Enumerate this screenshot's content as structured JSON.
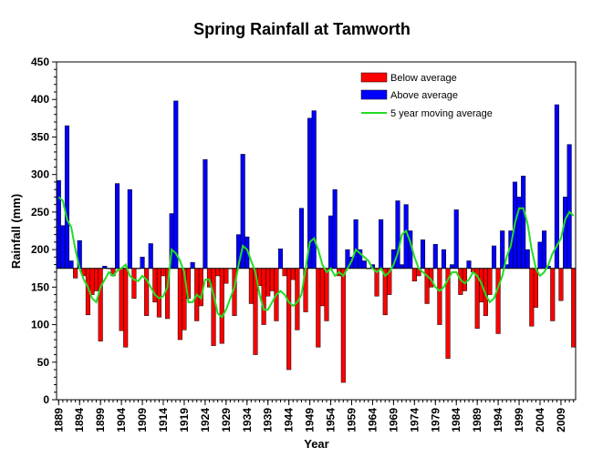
{
  "chart_data": {
    "type": "bar",
    "title": "Spring Rainfall at Tamworth",
    "xlabel": "Year",
    "ylabel": "Rainfall (mm)",
    "ylim": [
      0,
      450
    ],
    "yticks": [
      0,
      50,
      100,
      150,
      200,
      250,
      300,
      350,
      400,
      450
    ],
    "xtick_labels": [
      "1889",
      "1894",
      "1899",
      "1904",
      "1909",
      "1914",
      "1919",
      "1924",
      "1929",
      "1934",
      "1939",
      "1944",
      "1949",
      "1954",
      "1959",
      "1964",
      "1969",
      "1974",
      "1979",
      "1984",
      "1989",
      "1994",
      "1999",
      "2004",
      "2009"
    ],
    "baseline": 175,
    "legend_position": "top-right",
    "grid": false,
    "colors": {
      "below": "#ff0000",
      "above": "#0000ff",
      "moving_average": "#22dd22"
    },
    "series": [
      {
        "name": "Below average",
        "kind": "bar-below"
      },
      {
        "name": "Above average",
        "kind": "bar-above"
      },
      {
        "name": "5 year moving average",
        "kind": "line"
      }
    ],
    "x": [
      1889,
      1890,
      1891,
      1892,
      1893,
      1894,
      1895,
      1896,
      1897,
      1898,
      1899,
      1900,
      1901,
      1902,
      1903,
      1904,
      1905,
      1906,
      1907,
      1908,
      1909,
      1910,
      1911,
      1912,
      1913,
      1914,
      1915,
      1916,
      1917,
      1918,
      1919,
      1920,
      1921,
      1922,
      1923,
      1924,
      1925,
      1926,
      1927,
      1928,
      1929,
      1930,
      1931,
      1932,
      1933,
      1934,
      1935,
      1936,
      1937,
      1938,
      1939,
      1940,
      1941,
      1942,
      1943,
      1944,
      1945,
      1946,
      1947,
      1948,
      1949,
      1950,
      1951,
      1952,
      1953,
      1954,
      1955,
      1956,
      1957,
      1958,
      1959,
      1960,
      1961,
      1962,
      1963,
      1964,
      1965,
      1966,
      1967,
      1968,
      1969,
      1970,
      1971,
      1972,
      1973,
      1974,
      1975,
      1976,
      1977,
      1978,
      1979,
      1980,
      1981,
      1982,
      1983,
      1984,
      1985,
      1986,
      1987,
      1988,
      1989,
      1990,
      1991,
      1992,
      1993,
      1994,
      1995,
      1996,
      1997,
      1998,
      1999,
      2000,
      2001,
      2002,
      2003,
      2004,
      2005,
      2006,
      2007,
      2008,
      2009,
      2010,
      2011,
      2012
    ],
    "rainfall": [
      292,
      232,
      365,
      185,
      162,
      212,
      165,
      113,
      140,
      145,
      78,
      178,
      175,
      165,
      288,
      92,
      70,
      280,
      135,
      175,
      190,
      112,
      208,
      130,
      110,
      165,
      108,
      248,
      398,
      80,
      93,
      135,
      183,
      105,
      125,
      320,
      150,
      72,
      165,
      75,
      155,
      175,
      112,
      220,
      327,
      217,
      128,
      60,
      152,
      100,
      138,
      145,
      105,
      201,
      165,
      40,
      160,
      93,
      255,
      117,
      375,
      385,
      70,
      125,
      105,
      245,
      280,
      165,
      23,
      200,
      190,
      240,
      200,
      185,
      175,
      180,
      138,
      240,
      113,
      140,
      200,
      265,
      180,
      260,
      225,
      158,
      165,
      213,
      128,
      150,
      207,
      100,
      200,
      55,
      180,
      253,
      140,
      145,
      185,
      170,
      95,
      130,
      112,
      140,
      205,
      88,
      225,
      180,
      225,
      290,
      270,
      298,
      200,
      98,
      123,
      210,
      225,
      178,
      105,
      393,
      132,
      270,
      340,
      70
    ],
    "moving_average": [
      270,
      265,
      240,
      230,
      200,
      175,
      160,
      150,
      135,
      130,
      150,
      160,
      170,
      165,
      172,
      175,
      180,
      165,
      160,
      158,
      165,
      160,
      150,
      140,
      135,
      138,
      150,
      200,
      195,
      185,
      170,
      130,
      130,
      140,
      135,
      160,
      160,
      140,
      115,
      110,
      120,
      135,
      150,
      180,
      205,
      200,
      185,
      170,
      140,
      120,
      120,
      130,
      140,
      145,
      140,
      130,
      125,
      130,
      140,
      175,
      210,
      215,
      200,
      180,
      170,
      175,
      165,
      170,
      165,
      175,
      185,
      200,
      195,
      190,
      185,
      175,
      170,
      175,
      165,
      170,
      180,
      195,
      220,
      225,
      210,
      190,
      175,
      170,
      165,
      160,
      150,
      145,
      150,
      160,
      170,
      170,
      160,
      155,
      160,
      170,
      165,
      155,
      140,
      130,
      135,
      150,
      165,
      190,
      205,
      235,
      255,
      255,
      235,
      200,
      175,
      165,
      170,
      180,
      195,
      205,
      215,
      240,
      250,
      245
    ]
  }
}
